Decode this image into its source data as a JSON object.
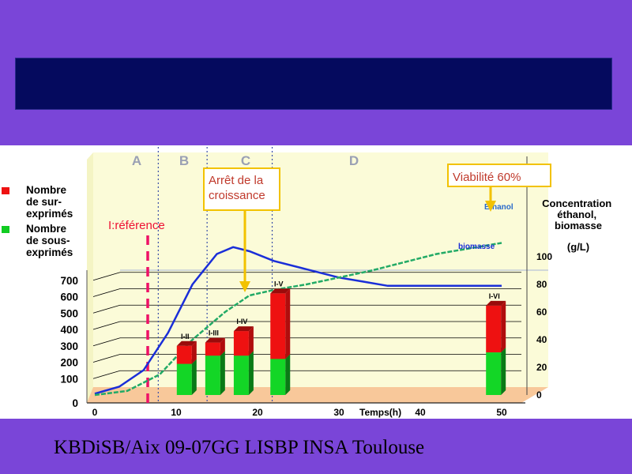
{
  "slide": {
    "footer": "KBDiSB/Aix 09-07GG LISBP INSA Toulouse",
    "colors": {
      "background": "#7a45d8",
      "title_bar": "#050a5e"
    }
  },
  "chart_data": {
    "type": "bar",
    "phases": [
      "A",
      "B",
      "C",
      "D"
    ],
    "legend": [
      {
        "label": "Nombre de sur-exprimés",
        "color": "#ee1111"
      },
      {
        "label": "Nombre de sous-exprimés",
        "color": "#11cc22"
      }
    ],
    "annotations": {
      "reference": "I:référence",
      "growth_stop": "Arrêt de la croissance",
      "viability": "Viabilité 60%",
      "right_axis_title": "Concentration éthanol, biomasse",
      "right_axis_unit": "(g/L)",
      "ethanol_label": "Ethanol",
      "biomass_label": "biomasse"
    },
    "x_axis": {
      "label": "Temps(h)",
      "ticks": [
        "0",
        "10",
        "20",
        "30",
        "40",
        "50"
      ],
      "range": [
        0,
        52
      ]
    },
    "y_left": {
      "ticks": [
        "0",
        "100",
        "200",
        "300",
        "400",
        "500",
        "600",
        "700"
      ],
      "range": [
        0,
        700
      ]
    },
    "y_right": {
      "ticks": [
        "0",
        "20",
        "40",
        "60",
        "80",
        "100"
      ],
      "range": [
        0,
        100
      ]
    },
    "series": [
      {
        "name": "Nombre de sur-exprimés",
        "values": [
          110,
          80,
          150,
          400,
          285
        ]
      },
      {
        "name": "Nombre de sous-exprimés",
        "values": [
          190,
          240,
          240,
          220,
          260
        ]
      }
    ],
    "bars": [
      {
        "label": "I-II",
        "time": 11
      },
      {
        "label": "I-III",
        "time": 14.5
      },
      {
        "label": "I-IV",
        "time": 18
      },
      {
        "label": "I-V",
        "time": 22.5
      },
      {
        "label": "I-VI",
        "time": 49
      }
    ],
    "biomass_curve": {
      "x": [
        0,
        3,
        6,
        9,
        12,
        15,
        17,
        19,
        22,
        26,
        30,
        33,
        36,
        40,
        44,
        50
      ],
      "y": [
        1,
        6,
        18,
        45,
        80,
        102,
        107,
        104,
        97,
        91,
        85,
        82,
        79,
        79,
        79,
        79
      ]
    },
    "ethanol_curve": {
      "x": [
        0,
        4,
        8,
        12,
        16,
        19,
        22,
        26,
        30,
        34,
        38,
        42,
        46,
        50
      ],
      "y": [
        0,
        3,
        15,
        40,
        60,
        72,
        76,
        80,
        85,
        90,
        96,
        102,
        106,
        110
      ]
    },
    "phase_boundaries": [
      7.8,
      13.8,
      21.8
    ]
  }
}
